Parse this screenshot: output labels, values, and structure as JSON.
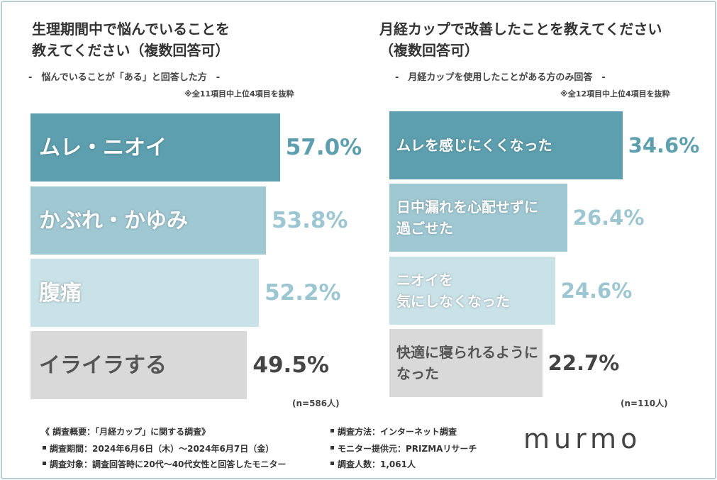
{
  "chart_data": [
    {
      "type": "bar",
      "orientation": "horizontal",
      "title": "生理期間中で悩んでいることを\n教えてください（複数回答可）",
      "subtitle": "-　悩んでいることが「ある」と回答した方　-",
      "note": "※全11項目中上位4項目を抜粋",
      "sample": "(n=586人)",
      "categories": [
        "ムレ・ニオイ",
        "かぶれ・かゆみ",
        "腹痛",
        "イライラする"
      ],
      "values": [
        57.0,
        53.8,
        52.2,
        49.5
      ],
      "value_labels": [
        "57.0%",
        "53.8%",
        "52.2%",
        "49.5%"
      ],
      "colors": [
        "#5d9fae",
        "#9fc8d3",
        "#c9e2e8",
        "#d9d9d9"
      ]
    },
    {
      "type": "bar",
      "orientation": "horizontal",
      "title": "月経カップで改善したことを教えてください\n（複数回答可）",
      "subtitle": "-　月経カップを使用したことがある方のみ回答　-",
      "note": "※全12項目中上位4項目を抜粋",
      "sample": "(n=110人)",
      "categories": [
        "ムレを感じにくくなった",
        "日中漏れを心配せずに\n過ごせた",
        "ニオイを\n気にしなくなった",
        "快適に寝られるように\nなった"
      ],
      "values": [
        34.6,
        26.4,
        24.6,
        22.7
      ],
      "value_labels": [
        "34.6%",
        "26.4%",
        "24.6%",
        "22.7%"
      ],
      "colors": [
        "#5d9fae",
        "#9fc8d3",
        "#c9e2e8",
        "#d9d9d9"
      ]
    }
  ],
  "survey": {
    "heading": "《 調査概要：「月経カップ」に関する調査》",
    "items": [
      "調査期間：2024年6月6日（木）～2024年6月7日（金）",
      "調査対象：調査回答時に20代～40代女性と回答したモニター",
      "調査方法：インターネット調査",
      "モニター提供元：PRIZMAリサーチ",
      "調査人数：1,061人"
    ],
    "brand": "murmo"
  }
}
